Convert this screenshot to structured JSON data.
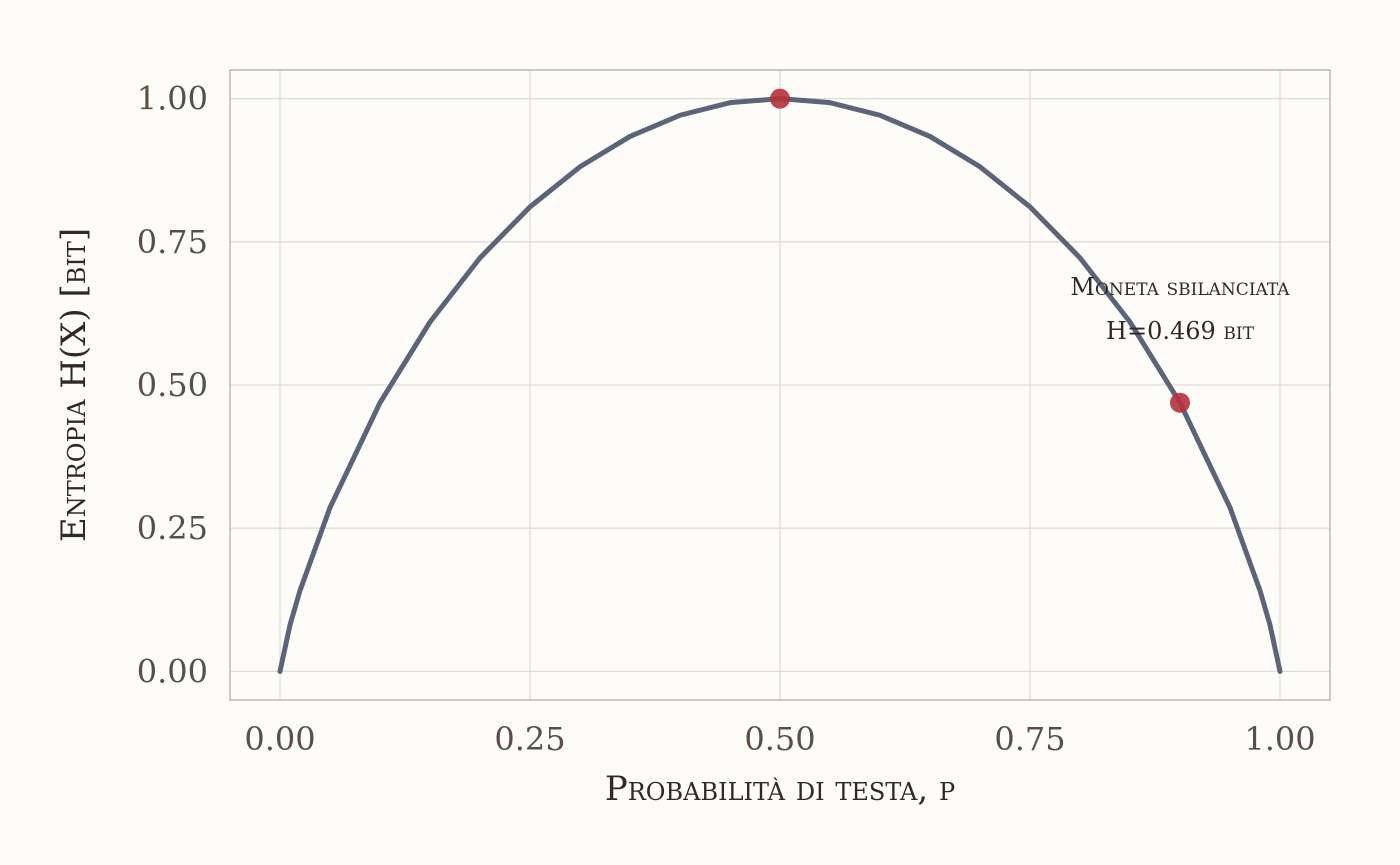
{
  "chart_data": {
    "type": "line",
    "title": "",
    "xlabel": "Probabilità di testa, p",
    "ylabel": "Entropia H(X) [bit]",
    "xlim": [
      -0.05,
      1.05
    ],
    "ylim": [
      -0.05,
      1.05
    ],
    "x_ticks": [
      0.0,
      0.25,
      0.5,
      0.75,
      1.0
    ],
    "x_tick_labels": [
      "0.00",
      "0.25",
      "0.50",
      "0.75",
      "1.00"
    ],
    "y_ticks": [
      0.0,
      0.25,
      0.5,
      0.75,
      1.0
    ],
    "y_tick_labels": [
      "0.00",
      "0.25",
      "0.50",
      "0.75",
      "1.00"
    ],
    "grid": true,
    "series": [
      {
        "x": [
          0.0,
          0.01,
          0.02,
          0.05,
          0.1,
          0.15,
          0.2,
          0.25,
          0.3,
          0.35,
          0.4,
          0.45,
          0.5,
          0.55,
          0.6,
          0.65,
          0.7,
          0.75,
          0.8,
          0.85,
          0.9,
          0.95,
          0.98,
          0.99,
          1.0
        ],
        "y": [
          0.0,
          0.081,
          0.141,
          0.286,
          0.469,
          0.61,
          0.722,
          0.811,
          0.881,
          0.934,
          0.971,
          0.993,
          1.0,
          0.993,
          0.971,
          0.934,
          0.881,
          0.811,
          0.722,
          0.61,
          0.469,
          0.286,
          0.141,
          0.081,
          0.0
        ],
        "color": "#5b6478"
      }
    ],
    "points": [
      {
        "x": 0.5,
        "y": 1.0,
        "color": "#b5323a"
      },
      {
        "x": 0.9,
        "y": 0.469,
        "color": "#b5323a"
      }
    ],
    "annotation": {
      "x": 0.9,
      "y": 0.469,
      "lines": [
        "Moneta sbilanciata",
        "H=0.469 bit"
      ]
    },
    "colors": {
      "background": "#fdfcf9",
      "grid": "#dedcd8",
      "axis": "#b9b7b3",
      "tick_text": "#5b4f45",
      "title_text": "#2f2a26",
      "line": "#5b6478",
      "point": "#b5323a"
    }
  }
}
